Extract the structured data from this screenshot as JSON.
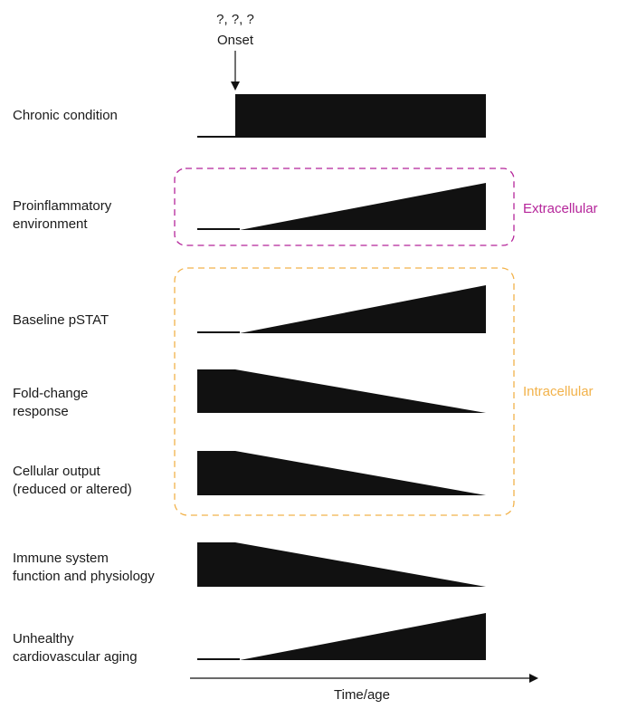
{
  "onset": {
    "question": "?, ?, ?",
    "label": "Onset"
  },
  "rows": [
    {
      "label": "Chronic condition",
      "shape": "step"
    },
    {
      "label": "Proinflammatory\nenvironment",
      "shape": "increase"
    },
    {
      "label": "Baseline pSTAT",
      "shape": "increase"
    },
    {
      "label": "Fold-change\nresponse",
      "shape": "decrease"
    },
    {
      "label": "Cellular output\n(reduced or altered)",
      "shape": "decrease"
    },
    {
      "label": "Immune system\nfunction and physiology",
      "shape": "decrease"
    },
    {
      "label": "Unhealthy\ncardiovascular aging",
      "shape": "increase"
    }
  ],
  "groups": {
    "extracellular": {
      "label": "Extracellular",
      "color": "#b5259a"
    },
    "intracellular": {
      "label": "Intracellular",
      "color": "#f2b24a"
    }
  },
  "axis": {
    "label": "Time/age"
  },
  "colors": {
    "fill": "#111111",
    "text": "#1a1a1a"
  }
}
